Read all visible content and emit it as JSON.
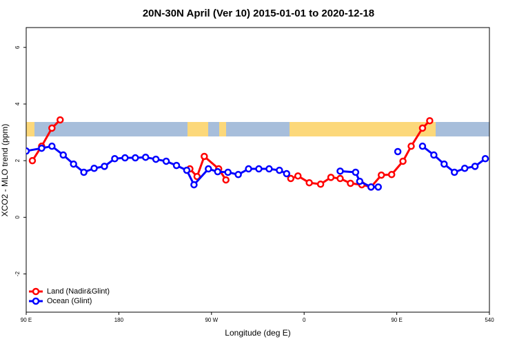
{
  "chart_data": {
    "type": "line",
    "title": "20N-30N April (Ver 10)   2015-01-01 to 2020-12-18",
    "xlabel": "Longitude (deg E)",
    "ylabel": "XCO2 - MLO trend (ppm)",
    "xlim": [
      90,
      540
    ],
    "ylim": [
      -3.35,
      6.7
    ],
    "xticks": [
      {
        "value": 90,
        "label": "90 E"
      },
      180,
      {
        "value": 270,
        "label": "90 W"
      },
      {
        "value": 360,
        "label": "0"
      },
      {
        "value": 450,
        "label": "90 E"
      },
      540
    ],
    "yticks": [
      -2,
      0,
      2,
      4,
      6
    ],
    "legend": "bottomleft",
    "series": [
      {
        "name": "Land (Nadir&Glint)",
        "color": "#ff0000",
        "x": [
          96,
          105,
          115,
          123,
          null,
          249,
          256,
          263,
          277,
          284,
          null,
          347,
          354,
          365,
          376,
          386,
          395,
          405,
          416,
          425,
          435,
          445,
          456,
          464,
          475,
          482
        ],
        "values": [
          2.0,
          2.51,
          3.15,
          3.44,
          null,
          1.71,
          1.44,
          2.15,
          1.71,
          1.32,
          null,
          1.37,
          1.46,
          1.22,
          1.17,
          1.41,
          1.37,
          1.2,
          1.15,
          1.07,
          1.49,
          1.51,
          1.98,
          2.51,
          3.15,
          3.41
        ]
      },
      {
        "name": "Ocean (Glint)",
        "color": "#0000ff",
        "x": [
          90,
          105,
          115,
          126,
          136,
          146,
          156,
          166,
          176,
          186,
          196,
          206,
          216,
          226,
          236,
          246,
          253,
          267,
          276,
          286,
          296,
          306,
          316,
          326,
          336,
          343,
          null,
          395,
          410,
          414,
          425,
          432,
          null,
          451,
          null,
          475,
          486,
          496,
          506,
          516,
          526,
          536
        ],
        "values": [
          2.34,
          2.44,
          2.51,
          2.2,
          1.88,
          1.59,
          1.73,
          1.8,
          2.07,
          2.1,
          2.1,
          2.12,
          2.05,
          1.98,
          1.83,
          1.66,
          1.15,
          1.71,
          1.61,
          1.59,
          1.51,
          1.71,
          1.71,
          1.71,
          1.66,
          1.54,
          null,
          1.63,
          1.59,
          1.27,
          1.07,
          1.07,
          null,
          2.32,
          null,
          2.51,
          2.2,
          1.88,
          1.59,
          1.73,
          1.8,
          2.07
        ]
      }
    ]
  }
}
